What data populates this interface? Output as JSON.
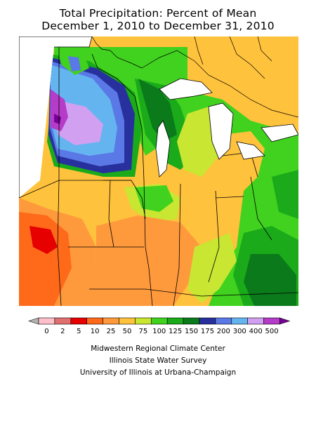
{
  "title": {
    "line1": "Total Precipitation: Percent of Mean",
    "line2": "December 1, 2010 to December 31, 2010"
  },
  "legend": {
    "labels": [
      "0",
      "2",
      "5",
      "10",
      "25",
      "50",
      "75",
      "100",
      "125",
      "150",
      "175",
      "200",
      "300",
      "400",
      "500"
    ],
    "colors": [
      "#ffc0cb",
      "#e07070",
      "#e60000",
      "#ff6a1a",
      "#ff9a3c",
      "#ffc23c",
      "#c8e632",
      "#40d21e",
      "#1aaa1a",
      "#0a7a1a",
      "#28309e",
      "#5a78e6",
      "#64b4f0",
      "#d2a0f0",
      "#b43cc8"
    ],
    "below_color": "#b4b4b4",
    "above_color": "#780096"
  },
  "credits": [
    "Midwestern Regional Climate Center",
    "Illinois State Water Survey",
    "University of Illinois at Urbana-Champaign"
  ]
}
